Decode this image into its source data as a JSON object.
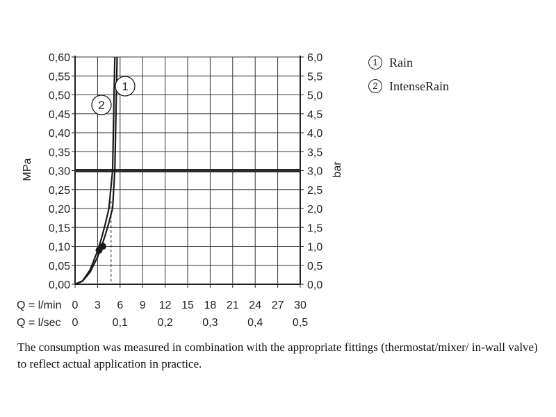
{
  "chart_data": {
    "type": "line",
    "left_axis_label": "MPa",
    "right_axis_label": "bar",
    "x_axis_lmin_label": "Q = l/min",
    "x_axis_lsec_label": "Q = l/sec",
    "x_lmin_ticks": [
      "0",
      "3",
      "6",
      "9",
      "12",
      "15",
      "18",
      "21",
      "24",
      "27",
      "30"
    ],
    "x_lsec_ticks": [
      "0",
      "0,1",
      "0,2",
      "0,3",
      "0,4",
      "0,5"
    ],
    "y_mpa_ticks": [
      "0,00",
      "0,05",
      "0,10",
      "0,15",
      "0,20",
      "0,25",
      "0,30",
      "0,35",
      "0,40",
      "0,45",
      "0,50",
      "0,55",
      "0,60"
    ],
    "y_bar_ticks": [
      "0,0",
      "0,5",
      "1,0",
      "1,5",
      "2,0",
      "2,5",
      "3,0",
      "3,5",
      "4,0",
      "4,5",
      "5,0",
      "5,5",
      "6,0"
    ],
    "xlim": [
      0,
      30
    ],
    "ylim": [
      0,
      0.6
    ],
    "grid": true,
    "reference_line": {
      "y": 0.3
    },
    "series": [
      {
        "name": "Rain",
        "marker_label": "1",
        "x": [
          0,
          1,
          2,
          3,
          3.5,
          4,
          4.5,
          5,
          5.3,
          5.6
        ],
        "y": [
          0,
          0.008,
          0.032,
          0.072,
          0.098,
          0.128,
          0.162,
          0.2,
          0.3,
          0.6
        ],
        "point": {
          "x": 3.7,
          "y": 0.1
        }
      },
      {
        "name": "IntenseRain",
        "marker_label": "2",
        "x": [
          0,
          1,
          2,
          3,
          3.5,
          4,
          4.5,
          5,
          5.3
        ],
        "y": [
          0,
          0.009,
          0.038,
          0.088,
          0.12,
          0.157,
          0.199,
          0.3,
          0.6
        ],
        "point": {
          "x": 3.2,
          "y": 0.09
        }
      }
    ],
    "dashed_marker": {
      "x": 4.8,
      "y_top": 0.22
    }
  },
  "legend": [
    {
      "num": "①",
      "label": "Rain"
    },
    {
      "num": "②",
      "label": "IntenseRain"
    }
  ],
  "note": "The consumption was measured in combination with the appropriate fittings (thermostat/mixer/ in-wall valve) to reflect actual application in practice."
}
